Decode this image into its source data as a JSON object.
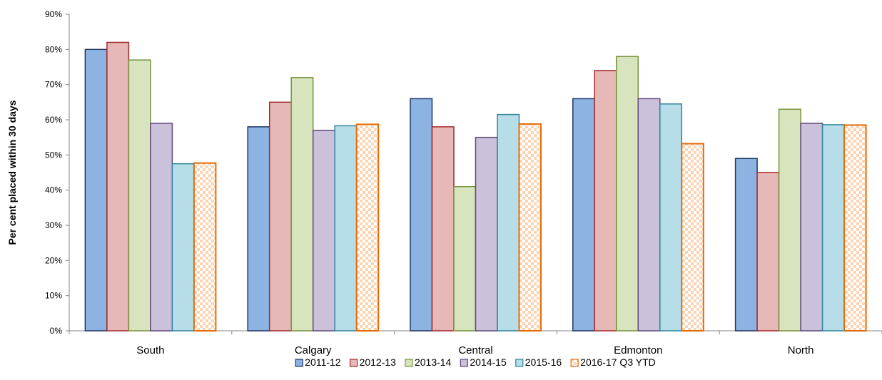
{
  "chart_data": {
    "type": "bar",
    "title": "",
    "xlabel": "",
    "ylabel": "Per cent placed within 30 days",
    "ylim": [
      0,
      90
    ],
    "ytick_step": 10,
    "ytick_suffix": "%",
    "grid": false,
    "legend_position": "bottom",
    "categories": [
      "South",
      "Calgary",
      "Central",
      "Edmonton",
      "North"
    ],
    "series": [
      {
        "name": "2011-12",
        "fill": "#8DB3E2",
        "stroke": "#1F3864",
        "pattern": false,
        "values": [
          80,
          58,
          66,
          66,
          49
        ]
      },
      {
        "name": "2012-13",
        "fill": "#E6B9B8",
        "stroke": "#A52A2A",
        "pattern": false,
        "values": [
          82,
          65,
          58,
          74,
          45
        ]
      },
      {
        "name": "2013-14",
        "fill": "#D7E4BD",
        "stroke": "#77933C",
        "pattern": false,
        "values": [
          77,
          72,
          41,
          78,
          63
        ]
      },
      {
        "name": "2014-15",
        "fill": "#CCC1DA",
        "stroke": "#5F497A",
        "pattern": false,
        "values": [
          59,
          57,
          55,
          66,
          59
        ]
      },
      {
        "name": "2015-16",
        "fill": "#B7DEE8",
        "stroke": "#31859C",
        "pattern": false,
        "values": [
          47.5,
          58.3,
          61.5,
          64.5,
          58.6
        ]
      },
      {
        "name": "2016-17 Q3 YTD",
        "fill": "#FBD4B4",
        "stroke": "#E36C09",
        "pattern": true,
        "values": [
          47.7,
          58.7,
          58.8,
          53.2,
          58.5
        ]
      }
    ]
  }
}
